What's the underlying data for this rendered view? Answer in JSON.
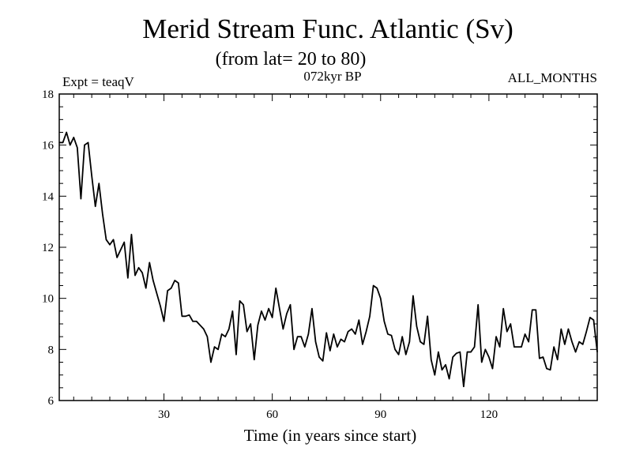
{
  "chart_data": {
    "type": "line",
    "title": "Merid Stream Func. Atlantic (Sv)",
    "subtitle": "(from lat= 20 to 80)",
    "annotation_left": "Expt = teaqV",
    "annotation_center": "072kyr BP",
    "annotation_right": "ALL_MONTHS",
    "xlabel": "Time (in years since start)",
    "ylabel": "",
    "xlim": [
      1,
      150
    ],
    "ylim": [
      6,
      18
    ],
    "x_ticks": [
      30,
      60,
      90,
      120
    ],
    "y_ticks": [
      6,
      8,
      10,
      12,
      14,
      16,
      18
    ],
    "grid": false,
    "series": [
      {
        "x_start": 1,
        "x_step": 1,
        "color": "#000000",
        "values": [
          16.1,
          16.1,
          16.5,
          16.0,
          16.3,
          15.9,
          13.9,
          16.0,
          16.1,
          14.8,
          13.6,
          14.5,
          13.3,
          12.3,
          12.1,
          12.3,
          11.6,
          11.9,
          12.2,
          10.8,
          12.5,
          10.9,
          11.2,
          11.0,
          10.4,
          11.4,
          10.7,
          10.2,
          9.7,
          9.1,
          10.3,
          10.4,
          10.7,
          10.6,
          9.3,
          9.3,
          9.35,
          9.1,
          9.1,
          8.95,
          8.8,
          8.5,
          7.5,
          8.1,
          8.0,
          8.6,
          8.5,
          8.8,
          9.5,
          7.8,
          9.9,
          9.75,
          8.7,
          9.0,
          7.6,
          8.95,
          9.5,
          9.15,
          9.6,
          9.25,
          10.4,
          9.6,
          8.8,
          9.4,
          9.75,
          8.0,
          8.5,
          8.5,
          8.1,
          8.6,
          9.6,
          8.3,
          7.7,
          7.55,
          8.65,
          7.95,
          8.6,
          8.1,
          8.4,
          8.3,
          8.7,
          8.8,
          8.6,
          9.15,
          8.2,
          8.7,
          9.3,
          10.5,
          10.4,
          10.0,
          9.1,
          8.6,
          8.55,
          8.0,
          7.8,
          8.5,
          7.8,
          8.3,
          10.1,
          8.9,
          8.3,
          8.2,
          9.3,
          7.6,
          7.0,
          7.9,
          7.2,
          7.4,
          6.85,
          7.7,
          7.85,
          7.9,
          6.55,
          7.9,
          7.9,
          8.1,
          9.75,
          7.5,
          8.0,
          7.7,
          7.25,
          8.5,
          8.1,
          9.6,
          8.7,
          9.0,
          8.1,
          8.1,
          8.1,
          8.6,
          8.3,
          9.55,
          9.55,
          7.65,
          7.7,
          7.25,
          7.2,
          8.1,
          7.6,
          8.8,
          8.2,
          8.8,
          8.3,
          7.9,
          8.3,
          8.2,
          8.7,
          9.25,
          9.15,
          7.9
        ]
      }
    ]
  }
}
